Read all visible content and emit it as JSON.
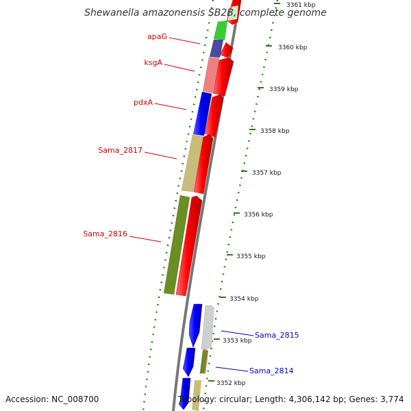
{
  "title": "Shewanella amazonensis SB2B, complete genome",
  "footer": {
    "accession": "Accession: NC_008700",
    "topology": "Topology: circular; Length: 4,306,142 bp; Genes: 3,774"
  },
  "scale_labels": [
    {
      "text": "3361 kbp",
      "kbp": 3361
    },
    {
      "text": "3360 kbp",
      "kbp": 3360
    },
    {
      "text": "3359 kbp",
      "kbp": 3359
    },
    {
      "text": "3358 kbp",
      "kbp": 3358
    },
    {
      "text": "3357 kbp",
      "kbp": 3357
    },
    {
      "text": "3356 kbp",
      "kbp": 3356
    },
    {
      "text": "3355 kbp",
      "kbp": 3355
    },
    {
      "text": "3354 kbp",
      "kbp": 3354
    },
    {
      "text": "3353 kbp",
      "kbp": 3353
    },
    {
      "text": "3352 kbp",
      "kbp": 3352
    }
  ],
  "gene_labels": [
    {
      "text": "apaG",
      "color": "#cc0000"
    },
    {
      "text": "ksgA",
      "color": "#cc0000"
    },
    {
      "text": "pdxA",
      "color": "#cc0000"
    },
    {
      "text": "Sama_2817",
      "color": "#cc0000"
    },
    {
      "text": "Sama_2816",
      "color": "#cc0000"
    },
    {
      "text": "Sama_2815",
      "color": "#0000cc"
    },
    {
      "text": "Sama_2814",
      "color": "#0000cc"
    }
  ],
  "colors": {
    "cds_forward": "#ff0000",
    "cds_reverse": "#ff0000",
    "backbone": "#777777",
    "tick": "#2a7a1a"
  }
}
